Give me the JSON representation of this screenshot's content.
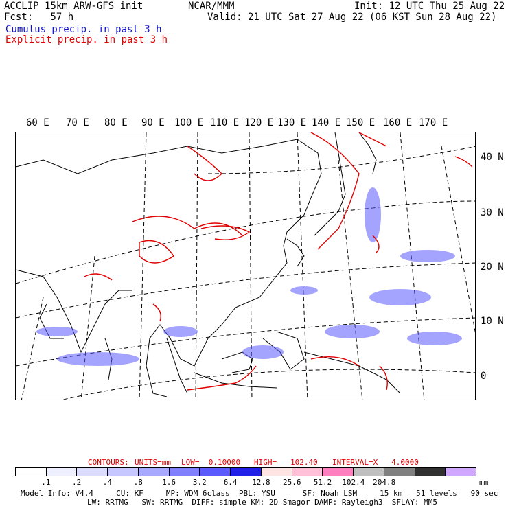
{
  "header": {
    "model": "ACCLIP 15km ARW-GFS init",
    "org": "NCAR/MMM",
    "init": "Init: 12 UTC Thu 25 Aug 22",
    "fcst": "Fcst:   57 h",
    "valid": "Valid: 21 UTC Sat 27 Aug 22 (06 KST Sun 28 Aug 22)",
    "legend_cumulus": "Cumulus precip. in past 3 h",
    "legend_explicit": "Explicit precip. in past 3 h"
  },
  "colors": {
    "cumulus": "#1010d0",
    "explicit": "#e00000",
    "coast": "#000000",
    "grid": "#000000"
  },
  "lon_labels": [
    "60 E",
    "70 E",
    "80 E",
    "90 E",
    "100 E",
    "110 E",
    "120 E",
    "130 E",
    "140 E",
    "150 E",
    "160 E",
    "170 E"
  ],
  "lat_labels": [
    "40 N",
    "30 N",
    "20 N",
    "10 N",
    "0"
  ],
  "contours_info": {
    "label": "CONTOURS:",
    "units": "UNITS=mm",
    "low": "LOW=  0.10000",
    "high": "HIGH=   102.40",
    "interval": "INTERVAL=X   4.0000"
  },
  "colorbar": {
    "colors": [
      "#ffffff",
      "#eef0ff",
      "#dcdcff",
      "#c6c8ff",
      "#a8aaff",
      "#8080ff",
      "#5a5aff",
      "#2020e8",
      "#ffe4e4",
      "#ffc0d8",
      "#ff80c0",
      "#c0c0c0",
      "#808080",
      "#303030",
      "#d0a8ff"
    ],
    "ticks": [
      ".1",
      ".2",
      ".4",
      ".8",
      "1.6",
      "3.2",
      "6.4",
      "12.8",
      "25.6",
      "51.2",
      "102.4",
      "204.8"
    ],
    "unit": "mm"
  },
  "model_info": {
    "line1": "Model Info: V4.4     CU: KF     MP: WDM 6class  PBL: YSU      SF: Noah LSM     15 km   51 levels   90 sec",
    "line2": "LW: RRTMG   SW: RRTMG  DIFF: simple KM: 2D Smagor DAMP: Rayleigh3  SFLAY: MM5"
  }
}
